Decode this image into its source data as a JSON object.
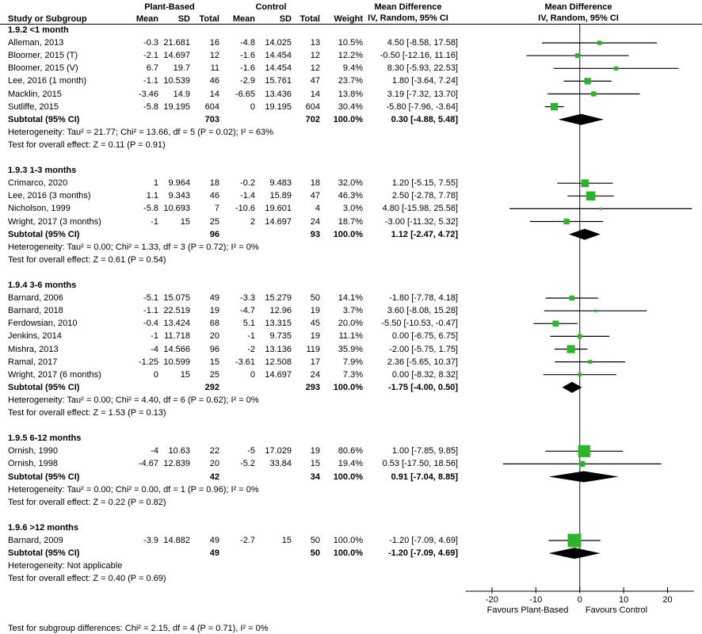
{
  "chart_data": {
    "type": "forest",
    "effect_title_left": "Mean Difference",
    "effect_title_right": "Mean Difference",
    "method_label_left": "IV, Random, 95% CI",
    "method_label_right": "IV, Random, 95% CI",
    "group_headers": {
      "experimental": "Plant-Based",
      "control": "Control"
    },
    "column_headers": {
      "study": "Study or Subgroup",
      "mean1": "Mean",
      "sd1": "SD",
      "total1": "Total",
      "mean2": "Mean",
      "sd2": "SD",
      "total2": "Total",
      "weight": "Weight"
    },
    "marker_color": "#2CB52C",
    "axis": {
      "min": -26,
      "max": 26,
      "ticks": [
        -20,
        -10,
        0,
        10,
        20
      ],
      "favours_left": "Favours Plant-Based",
      "favours_right": "Favours Control"
    },
    "sections": [
      {
        "label": "1.9.2 <1 month",
        "studies": [
          {
            "name": "Alleman, 2013",
            "mean1": "-0.3",
            "sd1": "21.681",
            "total1": "16",
            "mean2": "-4.8",
            "sd2": "14.025",
            "total2": "13",
            "weight": "10.5%",
            "weight_val": 10.5,
            "md": 4.5,
            "lo": -8.58,
            "hi": 17.58,
            "ci_text": "4.50 [-8.58, 17.58]"
          },
          {
            "name": "Bloomer, 2015 (T)",
            "mean1": "-2.1",
            "sd1": "14.697",
            "total1": "12",
            "mean2": "-1.6",
            "sd2": "14.454",
            "total2": "12",
            "weight": "12.2%",
            "weight_val": 12.2,
            "md": -0.5,
            "lo": -12.16,
            "hi": 11.16,
            "ci_text": "-0.50 [-12.16, 11.16]"
          },
          {
            "name": "Bloomer, 2015 (V)",
            "mean1": "6.7",
            "sd1": "19.7",
            "total1": "11",
            "mean2": "-1.6",
            "sd2": "14.454",
            "total2": "12",
            "weight": "9.4%",
            "weight_val": 9.4,
            "md": 8.3,
            "lo": -5.93,
            "hi": 22.53,
            "ci_text": "8.30 [-5.93, 22.53]"
          },
          {
            "name": "Lee, 2016 (1 month)",
            "mean1": "-1.1",
            "sd1": "10.539",
            "total1": "46",
            "mean2": "-2.9",
            "sd2": "15.761",
            "total2": "47",
            "weight": "23.7%",
            "weight_val": 23.7,
            "md": 1.8,
            "lo": -3.64,
            "hi": 7.24,
            "ci_text": "1.80 [-3.64, 7.24]"
          },
          {
            "name": "Macklin, 2015",
            "mean1": "-3.46",
            "sd1": "14.9",
            "total1": "14",
            "mean2": "-6.65",
            "sd2": "13.436",
            "total2": "14",
            "weight": "13.8%",
            "weight_val": 13.8,
            "md": 3.19,
            "lo": -7.32,
            "hi": 13.7,
            "ci_text": "3.19 [-7.32, 13.70]"
          },
          {
            "name": "Sutliffe, 2015",
            "mean1": "-5.8",
            "sd1": "19.195",
            "total1": "604",
            "mean2": "0",
            "sd2": "19.195",
            "total2": "604",
            "weight": "30.4%",
            "weight_val": 30.4,
            "md": -5.8,
            "lo": -7.96,
            "hi": -3.64,
            "ci_text": "-5.80 [-7.96, -3.64]"
          }
        ],
        "subtotal": {
          "label": "Subtotal (95% CI)",
          "total1": "703",
          "total2": "702",
          "weight": "100.0%",
          "md": 0.3,
          "lo": -4.88,
          "hi": 5.48,
          "ci_text": "0.30 [-4.88, 5.48]"
        },
        "heterogeneity": "Heterogeneity: Tau² = 21.77; Chi² = 13.66, df = 5 (P = 0.02); I² = 63%",
        "test": "Test for overall effect: Z = 0.11 (P = 0.91)"
      },
      {
        "label": "1.9.3 1-3 months",
        "studies": [
          {
            "name": "Crimarco, 2020",
            "mean1": "1",
            "sd1": "9.964",
            "total1": "18",
            "mean2": "-0.2",
            "sd2": "9.483",
            "total2": "18",
            "weight": "32.0%",
            "weight_val": 32.0,
            "md": 1.2,
            "lo": -5.15,
            "hi": 7.55,
            "ci_text": "1.20 [-5.15, 7.55]"
          },
          {
            "name": "Lee, 2016 (3 months)",
            "mean1": "1.1",
            "sd1": "9.343",
            "total1": "46",
            "mean2": "-1.4",
            "sd2": "15.89",
            "total2": "47",
            "weight": "46.3%",
            "weight_val": 46.3,
            "md": 2.5,
            "lo": -2.78,
            "hi": 7.78,
            "ci_text": "2.50 [-2.78, 7.78]"
          },
          {
            "name": "Nicholson, 1999",
            "mean1": "-5.8",
            "sd1": "10.693",
            "total1": "7",
            "mean2": "-10.6",
            "sd2": "19.601",
            "total2": "4",
            "weight": "3.0%",
            "weight_val": 3.0,
            "md": 4.8,
            "lo": -15.98,
            "hi": 25.58,
            "ci_text": "4.80 [-15.98, 25.58]"
          },
          {
            "name": "Wright, 2017 (3 months)",
            "mean1": "-1",
            "sd1": "15",
            "total1": "25",
            "mean2": "2",
            "sd2": "14.697",
            "total2": "24",
            "weight": "18.7%",
            "weight_val": 18.7,
            "md": -3.0,
            "lo": -11.32,
            "hi": 5.32,
            "ci_text": "-3.00 [-11.32, 5.32]"
          }
        ],
        "subtotal": {
          "label": "Subtotal (95% CI)",
          "total1": "96",
          "total2": "93",
          "weight": "100.0%",
          "md": 1.12,
          "lo": -2.47,
          "hi": 4.72,
          "ci_text": "1.12 [-2.47, 4.72]"
        },
        "heterogeneity": "Heterogeneity: Tau² = 0.00; Chi² = 1.33, df = 3 (P = 0.72); I² = 0%",
        "test": "Test for overall effect: Z = 0.61 (P = 0.54)"
      },
      {
        "label": "1.9.4 3-6 months",
        "studies": [
          {
            "name": "Barnard, 2006",
            "mean1": "-5.1",
            "sd1": "15.075",
            "total1": "49",
            "mean2": "-3.3",
            "sd2": "15.279",
            "total2": "50",
            "weight": "14.1%",
            "weight_val": 14.1,
            "md": -1.8,
            "lo": -7.78,
            "hi": 4.18,
            "ci_text": "-1.80 [-7.78, 4.18]"
          },
          {
            "name": "Barnard, 2018",
            "mean1": "-1.1",
            "sd1": "22.519",
            "total1": "19",
            "mean2": "-4.7",
            "sd2": "12.96",
            "total2": "19",
            "weight": "3.7%",
            "weight_val": 3.7,
            "md": 3.6,
            "lo": -8.08,
            "hi": 15.28,
            "ci_text": "3.60 [-8.08, 15.28]"
          },
          {
            "name": "Ferdowsian, 2010",
            "mean1": "-0.4",
            "sd1": "13.424",
            "total1": "68",
            "mean2": "5.1",
            "sd2": "13.315",
            "total2": "45",
            "weight": "20.0%",
            "weight_val": 20.0,
            "md": -5.5,
            "lo": -10.53,
            "hi": -0.47,
            "ci_text": "-5.50 [-10.53, -0.47]"
          },
          {
            "name": "Jenkins, 2014",
            "mean1": "-1",
            "sd1": "11.718",
            "total1": "20",
            "mean2": "-1",
            "sd2": "9.735",
            "total2": "19",
            "weight": "11.1%",
            "weight_val": 11.1,
            "md": 0.0,
            "lo": -6.75,
            "hi": 6.75,
            "ci_text": "0.00 [-6.75, 6.75]"
          },
          {
            "name": "Mishra, 2013",
            "mean1": "-4",
            "sd1": "14.566",
            "total1": "96",
            "mean2": "-2",
            "sd2": "13.136",
            "total2": "119",
            "weight": "35.9%",
            "weight_val": 35.9,
            "md": -2.0,
            "lo": -5.75,
            "hi": 1.75,
            "ci_text": "-2.00 [-5.75, 1.75]"
          },
          {
            "name": "Ramal, 2017",
            "mean1": "-1.25",
            "sd1": "10.599",
            "total1": "15",
            "mean2": "-3.61",
            "sd2": "12.508",
            "total2": "17",
            "weight": "7.9%",
            "weight_val": 7.9,
            "md": 2.36,
            "lo": -5.65,
            "hi": 10.37,
            "ci_text": "2.36 [-5.65, 10.37]"
          },
          {
            "name": "Wright, 2017 (6 months)",
            "mean1": "0",
            "sd1": "15",
            "total1": "25",
            "mean2": "0",
            "sd2": "14.697",
            "total2": "24",
            "weight": "7.3%",
            "weight_val": 7.3,
            "md": 0.0,
            "lo": -8.32,
            "hi": 8.32,
            "ci_text": "0.00 [-8.32, 8.32]"
          }
        ],
        "subtotal": {
          "label": "Subtotal (95% CI)",
          "total1": "292",
          "total2": "293",
          "weight": "100.0%",
          "md": -1.75,
          "lo": -4.0,
          "hi": 0.5,
          "ci_text": "-1.75 [-4.00, 0.50]"
        },
        "heterogeneity": "Heterogeneity: Tau² = 0.00; Chi² = 4.40, df = 6 (P = 0.62); I² = 0%",
        "test": "Test for overall effect: Z = 1.53 (P = 0.13)"
      },
      {
        "label": "1.9.5 6-12 months",
        "studies": [
          {
            "name": "Ornish, 1990",
            "mean1": "-4",
            "sd1": "10.63",
            "total1": "22",
            "mean2": "-5",
            "sd2": "17.029",
            "total2": "19",
            "weight": "80.6%",
            "weight_val": 80.6,
            "md": 1.0,
            "lo": -7.85,
            "hi": 9.85,
            "ci_text": "1.00 [-7.85, 9.85]"
          },
          {
            "name": "Ornish, 1998",
            "mean1": "-4.67",
            "sd1": "12.839",
            "total1": "20",
            "mean2": "-5.2",
            "sd2": "33.84",
            "total2": "15",
            "weight": "19.4%",
            "weight_val": 19.4,
            "md": 0.53,
            "lo": -17.5,
            "hi": 18.56,
            "ci_text": "0.53 [-17.50, 18.56]"
          }
        ],
        "subtotal": {
          "label": "Subtotal (95% CI)",
          "total1": "42",
          "total2": "34",
          "weight": "100.0%",
          "md": 0.91,
          "lo": -7.04,
          "hi": 8.85,
          "ci_text": "0.91 [-7.04, 8.85]"
        },
        "heterogeneity": "Heterogeneity: Tau² = 0.00; Chi² = 0.00, df = 1 (P = 0.96); I² = 0%",
        "test": "Test for overall effect: Z = 0.22 (P = 0.82)"
      },
      {
        "label": "1.9.6 >12 months",
        "studies": [
          {
            "name": "Barnard, 2009",
            "mean1": "-3.9",
            "sd1": "14.882",
            "total1": "49",
            "mean2": "-2.7",
            "sd2": "15",
            "total2": "50",
            "weight": "100.0%",
            "weight_val": 100.0,
            "md": -1.2,
            "lo": -7.09,
            "hi": 4.69,
            "ci_text": "-1.20 [-7.09, 4.69]"
          }
        ],
        "subtotal": {
          "label": "Subtotal (95% CI)",
          "total1": "49",
          "total2": "50",
          "weight": "100.0%",
          "md": -1.2,
          "lo": -7.09,
          "hi": 4.69,
          "ci_text": "-1.20 [-7.09, 4.69]"
        },
        "heterogeneity": "Heterogeneity: Not applicable",
        "test": "Test for overall effect: Z = 0.40 (P = 0.69)"
      }
    ],
    "footer": "Test for subgroup differences: Chi² = 2.15, df = 4 (P = 0.71), I² = 0%"
  }
}
